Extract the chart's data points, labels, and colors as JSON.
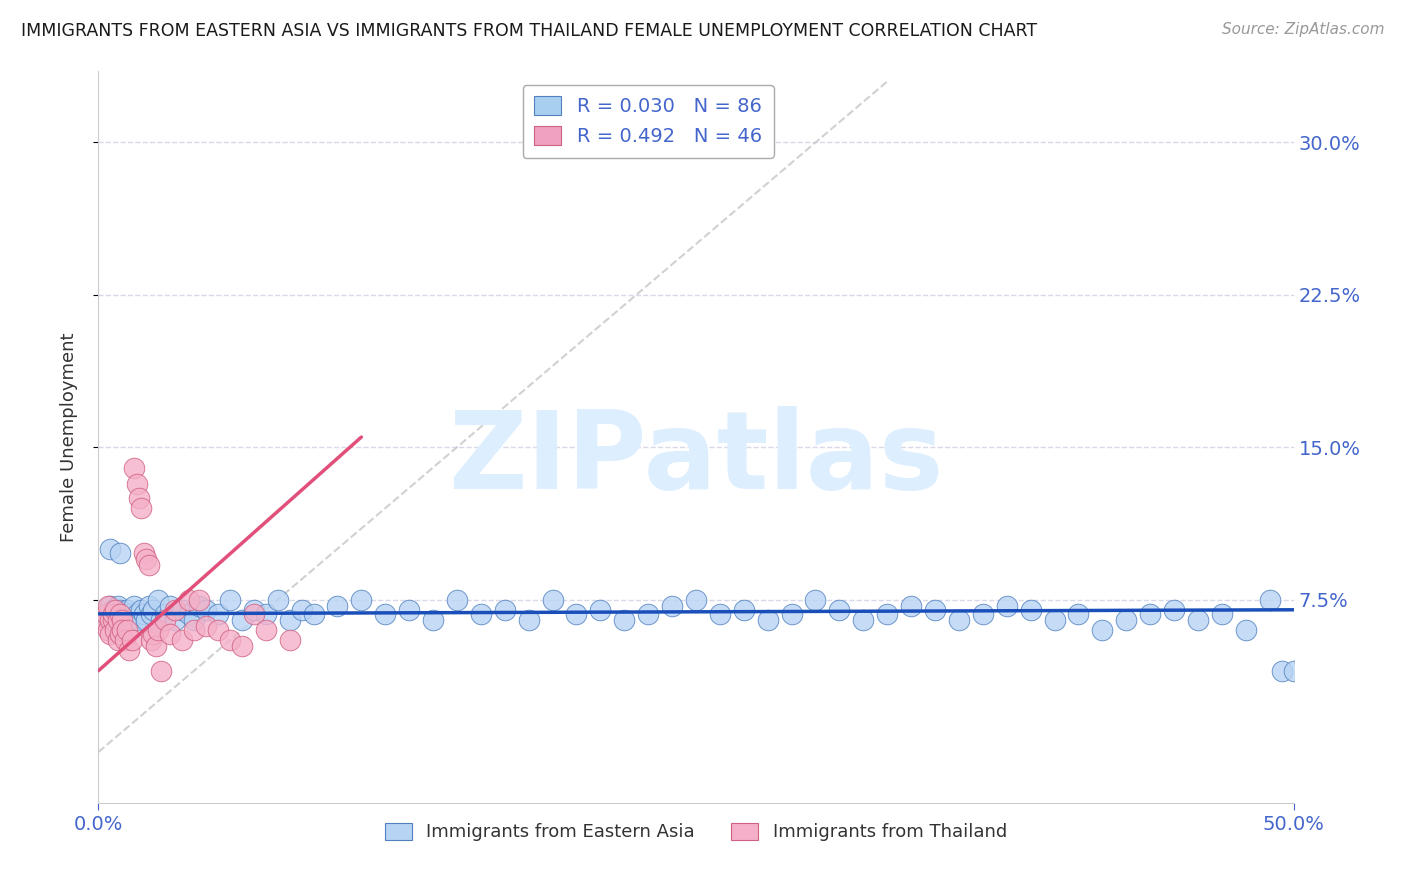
{
  "title": "IMMIGRANTS FROM EASTERN ASIA VS IMMIGRANTS FROM THAILAND FEMALE UNEMPLOYMENT CORRELATION CHART",
  "source": "Source: ZipAtlas.com",
  "ylabel": "Female Unemployment",
  "xlim": [
    0.0,
    0.5
  ],
  "ylim": [
    -0.025,
    0.335
  ],
  "legend_color1": "#a8cef0",
  "legend_color2": "#f0a0c0",
  "trend_color1": "#1a4fba",
  "trend_color2": "#e0507a",
  "diagonal_color": "#cccccc",
  "watermark": "ZIPatlas",
  "watermark_color": "#ddeeff",
  "bg_color": "#ffffff",
  "scatter1_color": "#b8d4f4",
  "scatter2_color": "#f4b0c8",
  "scatter1_edge": "#5080c0",
  "scatter2_edge": "#d06080",
  "grid_color": "#d8d8e8",
  "title_color": "#1a1a1a",
  "axis_label_color": "#4466cc",
  "eastern_asia_x": [
    0.003,
    0.004,
    0.005,
    0.006,
    0.007,
    0.008,
    0.008,
    0.009,
    0.01,
    0.011,
    0.012,
    0.013,
    0.014,
    0.015,
    0.016,
    0.017,
    0.018,
    0.019,
    0.02,
    0.021,
    0.022,
    0.023,
    0.025,
    0.026,
    0.028,
    0.03,
    0.032,
    0.035,
    0.038,
    0.04,
    0.042,
    0.045,
    0.05,
    0.055,
    0.06,
    0.065,
    0.07,
    0.075,
    0.08,
    0.085,
    0.09,
    0.1,
    0.11,
    0.12,
    0.13,
    0.14,
    0.15,
    0.16,
    0.17,
    0.18,
    0.19,
    0.2,
    0.21,
    0.22,
    0.23,
    0.24,
    0.25,
    0.26,
    0.27,
    0.28,
    0.29,
    0.3,
    0.31,
    0.32,
    0.33,
    0.34,
    0.35,
    0.36,
    0.37,
    0.38,
    0.39,
    0.4,
    0.41,
    0.42,
    0.43,
    0.44,
    0.45,
    0.46,
    0.47,
    0.48,
    0.49,
    0.495,
    0.5,
    0.505,
    0.005,
    0.007,
    0.009
  ],
  "eastern_asia_y": [
    0.068,
    0.065,
    0.072,
    0.07,
    0.068,
    0.065,
    0.072,
    0.07,
    0.068,
    0.065,
    0.07,
    0.068,
    0.065,
    0.072,
    0.068,
    0.065,
    0.07,
    0.068,
    0.065,
    0.072,
    0.068,
    0.07,
    0.075,
    0.065,
    0.068,
    0.072,
    0.065,
    0.07,
    0.068,
    0.065,
    0.072,
    0.07,
    0.068,
    0.075,
    0.065,
    0.07,
    0.068,
    0.075,
    0.065,
    0.07,
    0.068,
    0.072,
    0.075,
    0.068,
    0.07,
    0.065,
    0.075,
    0.068,
    0.07,
    0.065,
    0.075,
    0.068,
    0.07,
    0.065,
    0.068,
    0.072,
    0.075,
    0.068,
    0.07,
    0.065,
    0.068,
    0.075,
    0.07,
    0.065,
    0.068,
    0.072,
    0.07,
    0.065,
    0.068,
    0.072,
    0.07,
    0.065,
    0.068,
    0.06,
    0.065,
    0.068,
    0.07,
    0.065,
    0.068,
    0.06,
    0.075,
    0.04,
    0.04,
    0.045,
    0.1,
    0.065,
    0.098
  ],
  "thailand_x": [
    0.002,
    0.003,
    0.004,
    0.004,
    0.005,
    0.005,
    0.006,
    0.006,
    0.007,
    0.007,
    0.008,
    0.008,
    0.009,
    0.009,
    0.01,
    0.01,
    0.011,
    0.012,
    0.013,
    0.014,
    0.015,
    0.016,
    0.017,
    0.018,
    0.019,
    0.02,
    0.021,
    0.022,
    0.023,
    0.024,
    0.025,
    0.026,
    0.028,
    0.03,
    0.032,
    0.035,
    0.038,
    0.04,
    0.042,
    0.045,
    0.05,
    0.055,
    0.06,
    0.065,
    0.07,
    0.08
  ],
  "thailand_y": [
    0.065,
    0.068,
    0.06,
    0.072,
    0.065,
    0.058,
    0.065,
    0.068,
    0.06,
    0.07,
    0.065,
    0.055,
    0.068,
    0.058,
    0.065,
    0.06,
    0.055,
    0.06,
    0.05,
    0.055,
    0.14,
    0.132,
    0.125,
    0.12,
    0.098,
    0.095,
    0.092,
    0.055,
    0.058,
    0.052,
    0.06,
    0.04,
    0.065,
    0.058,
    0.07,
    0.055,
    0.075,
    0.06,
    0.075,
    0.062,
    0.06,
    0.055,
    0.052,
    0.068,
    0.06,
    0.055
  ],
  "trend1_x0": 0.0,
  "trend1_x1": 0.5,
  "trend1_y0": 0.068,
  "trend1_y1": 0.07,
  "trend2_x0": 0.0,
  "trend2_x1": 0.11,
  "trend2_y0": 0.04,
  "trend2_y1": 0.155
}
